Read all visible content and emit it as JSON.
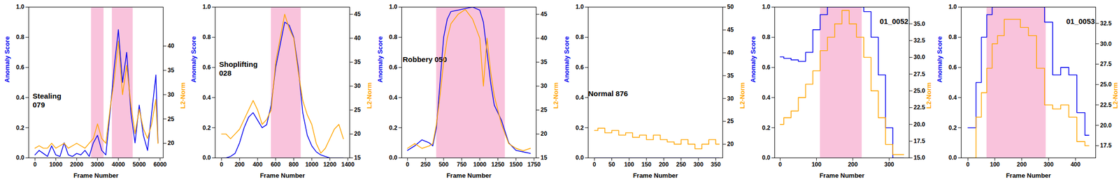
{
  "chart_data": [
    {
      "type": "line",
      "annotation": "Stealing\n079",
      "x_label": "Frame Number",
      "y_label": "Anomaly Score",
      "y2_label": "L2-Norm",
      "xlim": [
        -300,
        6150
      ],
      "xticks": [
        0,
        1000,
        2000,
        3000,
        4000,
        5000,
        6000
      ],
      "ylim": [
        0,
        1
      ],
      "yticks": [
        {
          "value": 0,
          "label": "0.0"
        },
        {
          "value": 0.2,
          "label": "0.2"
        },
        {
          "value": 0.4,
          "label": "0.4"
        },
        {
          "value": 0.6,
          "label": "0.6"
        },
        {
          "value": 0.8,
          "label": "0.8"
        },
        {
          "value": 1,
          "label": "1.0"
        }
      ],
      "y2lim": [
        17,
        48
      ],
      "y2ticks": [
        20,
        25,
        30,
        35,
        40
      ],
      "highlight": [
        [
          2700,
          3300
        ],
        [
          3700,
          4700
        ]
      ],
      "line_style": "solid",
      "x": [
        0,
        200,
        400,
        600,
        800,
        1000,
        1200,
        1400,
        1600,
        1800,
        2000,
        2200,
        2400,
        2600,
        2800,
        3000,
        3200,
        3400,
        3600,
        3800,
        4000,
        4200,
        4400,
        4600,
        4800,
        5000,
        5200,
        5400,
        5600,
        5800,
        5900
      ],
      "series": [
        {
          "name": "Anomaly Score",
          "color": "#0000ee",
          "values": [
            0.02,
            0.05,
            0.03,
            0.01,
            0.08,
            0.02,
            0.01,
            0.1,
            0.02,
            0.01,
            0.03,
            0.02,
            0.05,
            0.01,
            0.1,
            0.15,
            0.05,
            0.02,
            0.3,
            0.6,
            0.85,
            0.5,
            0.7,
            0.3,
            0.1,
            0.35,
            0.15,
            0.05,
            0.3,
            0.55,
            0.1
          ]
        },
        {
          "name": "L2-Norm",
          "color": "#ffa500",
          "axis": "y2",
          "values": [
            19,
            19.5,
            19,
            19,
            20,
            19,
            19.5,
            20,
            19,
            19.5,
            20,
            19.5,
            19,
            20,
            21,
            24,
            21,
            20,
            27,
            33,
            41,
            30,
            36,
            28,
            22,
            27,
            23,
            21,
            24,
            29,
            20
          ]
        }
      ]
    },
    {
      "type": "line",
      "annotation": "Shoplifting\n028",
      "x_label": "Frame Number",
      "y_label": "Anomaly Score",
      "y2_label": "L2-Norm",
      "xlim": [
        -70,
        1420
      ],
      "xticks": [
        0,
        200,
        400,
        600,
        800,
        1000,
        1200,
        1400
      ],
      "ylim": [
        0,
        1
      ],
      "yticks": [
        {
          "value": 0,
          "label": "0.0"
        },
        {
          "value": 0.2,
          "label": "0.2"
        },
        {
          "value": 0.4,
          "label": "0.4"
        },
        {
          "value": 0.6,
          "label": "0.6"
        },
        {
          "value": 0.8,
          "label": "0.8"
        },
        {
          "value": 1,
          "label": "1.0"
        }
      ],
      "y2lim": [
        15,
        46.5
      ],
      "y2ticks": [
        15,
        20,
        25,
        30,
        35,
        40,
        45
      ],
      "highlight": [
        [
          550,
          880
        ]
      ],
      "line_style": "solid",
      "x": [
        0,
        50,
        100,
        150,
        200,
        250,
        300,
        350,
        400,
        450,
        500,
        550,
        600,
        650,
        700,
        750,
        800,
        850,
        900,
        950,
        1000,
        1050,
        1100,
        1150,
        1200,
        1250,
        1300,
        1350
      ],
      "series": [
        {
          "name": "Anomaly Score",
          "color": "#0000ee",
          "values": [
            0,
            0,
            0.01,
            0.03,
            0.1,
            0.2,
            0.27,
            0.3,
            0.25,
            0.2,
            0.22,
            0.35,
            0.6,
            0.75,
            0.9,
            0.88,
            0.8,
            0.6,
            0.3,
            0.15,
            0.08,
            0.04,
            0.02,
            0.01,
            0,
            0,
            0,
            0
          ]
        },
        {
          "name": "L2-Norm",
          "color": "#ffa500",
          "axis": "y2",
          "values": [
            20,
            20,
            19,
            20,
            21,
            23,
            25,
            27,
            25,
            22,
            23,
            25,
            35,
            40,
            45,
            42,
            40,
            33,
            27,
            24,
            22,
            18,
            16,
            17,
            19,
            21,
            22,
            19
          ]
        }
      ]
    },
    {
      "type": "line",
      "annotation": "Robbery 050",
      "x_label": "Frame Number",
      "y_label": "Anomaly Score",
      "y2_label": "L2-Norm",
      "xlim": [
        -80,
        1780
      ],
      "xticks": [
        0,
        250,
        500,
        750,
        1000,
        1250,
        1500,
        1750
      ],
      "ylim": [
        0,
        1
      ],
      "yticks": [
        {
          "value": 0,
          "label": "0.0"
        },
        {
          "value": 0.2,
          "label": "0.2"
        },
        {
          "value": 0.4,
          "label": "0.4"
        },
        {
          "value": 0.6,
          "label": "0.6"
        },
        {
          "value": 0.8,
          "label": "0.8"
        },
        {
          "value": 1,
          "label": "1.0"
        }
      ],
      "y2lim": [
        15,
        46.5
      ],
      "y2ticks": [
        15,
        20,
        25,
        30,
        35,
        40,
        45
      ],
      "highlight": [
        [
          400,
          1350
        ]
      ],
      "line_style": "solid",
      "x": [
        0,
        100,
        200,
        300,
        350,
        400,
        450,
        500,
        550,
        600,
        700,
        800,
        900,
        1000,
        1050,
        1100,
        1150,
        1200,
        1300,
        1400,
        1500,
        1600,
        1700
      ],
      "series": [
        {
          "name": "Anomaly Score",
          "color": "#0000ee",
          "values": [
            0.05,
            0.08,
            0.12,
            0.1,
            0.08,
            0.2,
            0.5,
            0.8,
            0.92,
            0.97,
            0.98,
            0.99,
            1,
            0.98,
            0.9,
            0.7,
            0.5,
            0.35,
            0.25,
            0.1,
            0.05,
            0.04,
            0.03
          ]
        },
        {
          "name": "L2-Norm",
          "color": "#ffa500",
          "axis": "y2",
          "values": [
            17,
            18,
            17,
            17.5,
            18,
            22,
            28,
            35,
            40,
            43,
            45,
            46,
            44,
            40,
            30,
            40,
            33,
            28,
            22,
            18,
            17,
            16.5,
            17
          ]
        }
      ]
    },
    {
      "type": "line",
      "annotation": "Normal 876",
      "x_label": "Frame Number",
      "y_label": "Anomaly Score",
      "y2_label": "L2-Norm",
      "xlim": [
        -18,
        370
      ],
      "xticks": [
        0,
        50,
        100,
        150,
        200,
        250,
        300,
        350
      ],
      "ylim": [
        0,
        1
      ],
      "yticks": [
        {
          "value": 0,
          "label": "0.0"
        },
        {
          "value": 0.2,
          "label": "0.2"
        },
        {
          "value": 0.4,
          "label": "0.4"
        },
        {
          "value": 0.6,
          "label": "0.6"
        },
        {
          "value": 0.8,
          "label": "0.8"
        },
        {
          "value": 1,
          "label": "1.0"
        }
      ],
      "y2lim": [
        17,
        50
      ],
      "y2ticks": [
        20,
        25,
        30,
        35,
        40,
        45,
        50
      ],
      "highlight": [],
      "line_style": "step",
      "x": [
        0,
        20,
        40,
        60,
        80,
        100,
        120,
        140,
        160,
        180,
        200,
        220,
        240,
        260,
        280,
        300,
        320,
        340,
        360
      ],
      "series": [
        {
          "name": "Anomaly Score",
          "color": "#0000ee",
          "values": [
            0,
            0,
            0,
            0,
            0,
            0,
            0,
            0,
            0,
            0,
            0,
            0,
            0,
            0,
            0,
            0,
            0,
            0,
            0
          ]
        },
        {
          "name": "L2-Norm",
          "color": "#ffa500",
          "axis": "y2",
          "values": [
            23,
            23.5,
            22.5,
            23,
            22,
            22.5,
            21.5,
            22,
            21,
            22,
            21,
            20.5,
            20,
            21,
            20,
            19,
            20,
            21,
            20
          ]
        }
      ]
    },
    {
      "type": "line",
      "annotation": "01_0052",
      "x_label": "Frame Number",
      "y_label": "Anomaly Score",
      "y2_label": "L2-Norm",
      "xlim": [
        -15,
        355
      ],
      "xticks": [
        0,
        100,
        200,
        300
      ],
      "ylim": [
        0,
        1
      ],
      "yticks": [
        {
          "value": 0,
          "label": "0.0"
        },
        {
          "value": 0.2,
          "label": "0.2"
        },
        {
          "value": 0.4,
          "label": "0.4"
        },
        {
          "value": 0.6,
          "label": "0.6"
        },
        {
          "value": 0.8,
          "label": "0.8"
        },
        {
          "value": 1,
          "label": "1.0"
        }
      ],
      "y2lim": [
        15,
        37.5
      ],
      "y2ticks": [
        {
          "value": 15,
          "label": "15.0"
        },
        {
          "value": 17.5,
          "label": "17.5"
        },
        {
          "value": 20,
          "label": "20.0"
        },
        {
          "value": 22.5,
          "label": "22.5"
        },
        {
          "value": 25,
          "label": "25.0"
        },
        {
          "value": 27.5,
          "label": "27.5"
        },
        {
          "value": 30,
          "label": "30.0"
        },
        {
          "value": 32.5,
          "label": "32.5"
        },
        {
          "value": 35,
          "label": "35.0"
        }
      ],
      "highlight": [
        [
          110,
          225
        ]
      ],
      "line_style": "step",
      "x": [
        0,
        20,
        40,
        60,
        80,
        100,
        120,
        140,
        160,
        180,
        200,
        220,
        240,
        260,
        280,
        300,
        320,
        340
      ],
      "series": [
        {
          "name": "Anomaly Score",
          "color": "#0000ee",
          "values": [
            0.67,
            0.66,
            0.65,
            0.64,
            0.7,
            0.85,
            0.95,
            1,
            1,
            1,
            1,
            1,
            0.97,
            0.8,
            0.55,
            0.2,
            0,
            0
          ]
        },
        {
          "name": "L2-Norm",
          "color": "#ffa500",
          "axis": "y2",
          "values": [
            20,
            21,
            22,
            24,
            26,
            28,
            31,
            33,
            35,
            37,
            35,
            33,
            30,
            25,
            21,
            17,
            15.5,
            15.5
          ]
        }
      ]
    },
    {
      "type": "line",
      "annotation": "01_0053",
      "x_label": "Frame Number",
      "y_label": "Anomaly Score",
      "y2_label": "L2-Norm",
      "xlim": [
        -25,
        475
      ],
      "xticks": [
        0,
        100,
        200,
        300,
        400
      ],
      "ylim": [
        0,
        1
      ],
      "yticks": [
        {
          "value": 0,
          "label": "0.0"
        },
        {
          "value": 0.2,
          "label": "0.2"
        },
        {
          "value": 0.4,
          "label": "0.4"
        },
        {
          "value": 0.6,
          "label": "0.6"
        },
        {
          "value": 0.8,
          "label": "0.8"
        },
        {
          "value": 1,
          "label": "1.0"
        }
      ],
      "y2lim": [
        16,
        34.5
      ],
      "y2ticks": [
        {
          "value": 17.5,
          "label": "17.5"
        },
        {
          "value": 20,
          "label": "20.0"
        },
        {
          "value": 22.5,
          "label": "22.5"
        },
        {
          "value": 25,
          "label": "25.0"
        },
        {
          "value": 27.5,
          "label": "27.5"
        },
        {
          "value": 30,
          "label": "30.0"
        },
        {
          "value": 32.5,
          "label": "32.5"
        }
      ],
      "highlight": [
        [
          70,
          290
        ]
      ],
      "line_style": "step",
      "x": [
        0,
        20,
        40,
        60,
        80,
        100,
        120,
        150,
        180,
        210,
        240,
        270,
        300,
        330,
        360,
        390,
        420,
        450
      ],
      "series": [
        {
          "name": "Anomaly Score",
          "color": "#0000ee",
          "values": [
            0.2,
            0.2,
            0.5,
            0.8,
            0.95,
            1,
            1,
            1,
            1,
            1,
            1,
            1,
            0.9,
            0.55,
            0.6,
            0.55,
            0.3,
            0.15
          ]
        },
        {
          "name": "L2-Norm",
          "color": "#ffa500",
          "axis": "y2",
          "values": [
            16,
            16,
            21,
            24,
            27,
            30,
            31,
            33,
            33,
            32,
            31,
            27,
            22.5,
            22,
            22.5,
            21,
            18,
            17.5
          ]
        }
      ]
    }
  ]
}
